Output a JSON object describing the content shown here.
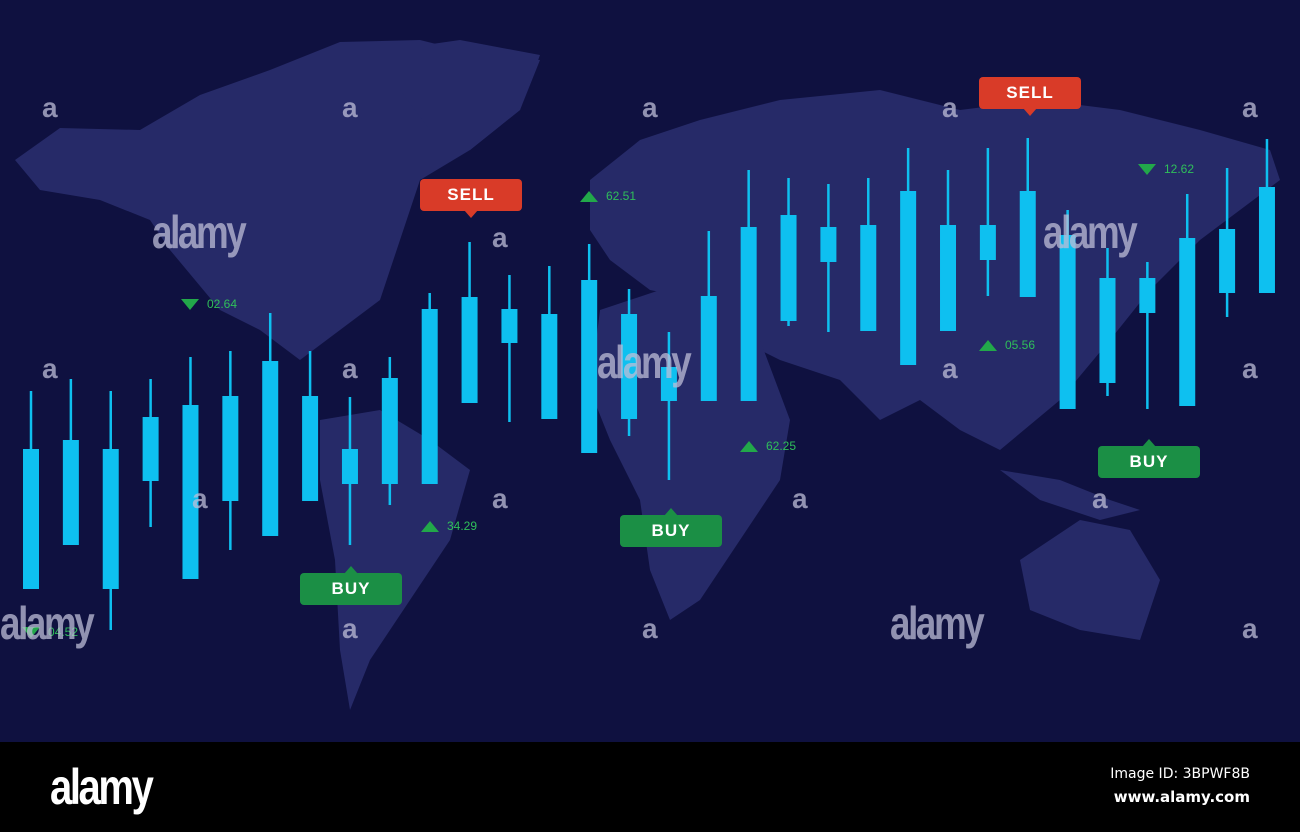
{
  "colors": {
    "background": "#0f1140",
    "map": "#262a68",
    "candle": "#0ec0f0",
    "sell": "#d93b28",
    "buy": "#1b8f45",
    "ticker": "#22a84a"
  },
  "signals": {
    "sell_1": "SELL",
    "sell_2": "SELL",
    "buy_1": "BUY",
    "buy_2": "BUY",
    "buy_3": "BUY"
  },
  "tickers": [
    {
      "value": "62.51",
      "direction": "up"
    },
    {
      "value": "12.62",
      "direction": "down"
    },
    {
      "value": "02.64",
      "direction": "down"
    },
    {
      "value": "05.56",
      "direction": "up"
    },
    {
      "value": "62.25",
      "direction": "up"
    },
    {
      "value": "34.29",
      "direction": "up"
    },
    {
      "value": "04.52",
      "direction": "down"
    }
  ],
  "watermark": {
    "logo": "alamy",
    "letter": "a"
  },
  "footer": {
    "logo": "alamy",
    "image_id": "Image ID: 3BPWF8B",
    "url": "www.alamy.com"
  }
}
